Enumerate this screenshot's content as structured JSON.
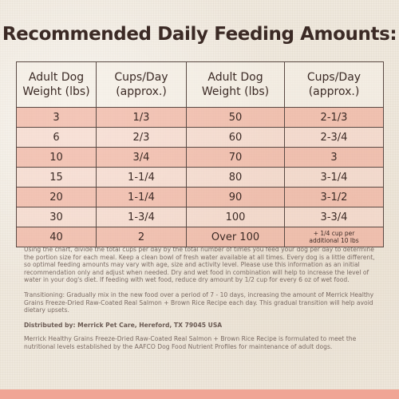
{
  "title": "Recommended Daily Feeding Amounts:",
  "table": {
    "headers": [
      "Adult Dog\nWeight (lbs)",
      "Cups/Day\n(approx.)",
      "Adult Dog\nWeight (lbs)",
      "Cups/Day\n(approx.)"
    ],
    "rows": [
      [
        "3",
        "1/3",
        "50",
        "2-1/3"
      ],
      [
        "6",
        "2/3",
        "60",
        "2-3/4"
      ],
      [
        "10",
        "3/4",
        "70",
        "3"
      ],
      [
        "15",
        "1-1/4",
        "80",
        "3-1/4"
      ],
      [
        "20",
        "1-1/4",
        "90",
        "3-1/2"
      ],
      [
        "30",
        "1-3/4",
        "100",
        "3-3/4"
      ],
      [
        "40",
        "2",
        "Over 100",
        "+ 1/4 cup per\nadditional 10 lbs"
      ]
    ]
  },
  "notes": {
    "usage": "Using the chart, divide the total cups per day by the total number of times you feed your dog per day to determine the portion size for each meal. Keep a clean bowl of fresh water available at all times. Every dog is a little different, so optimal feeding amounts may vary with age, size and activity level. Please use this information as an initial recommendation only and adjust when needed. Dry and wet food in combination will help to increase the level of water in your dog's diet. If feeding with wet food, reduce dry amount by 1/2 cup for every 6 oz of wet food.",
    "transition": "Transitioning: Gradually mix in the new food over a period of 7 - 10 days, increasing the amount of Merrick Healthy Grains Freeze-Dried Raw-Coated Real Salmon + Brown Rice Recipe each day. This gradual transition will help avoid dietary upsets.",
    "distributor": "Distributed by: Merrick Pet Care, Hereford, TX 79045 USA",
    "aafco": "Merrick Healthy Grains Freeze-Dried Raw-Coated Real Salmon + Brown Rice Recipe is formulated to meet the nutritional levels established by the AAFCO Dog Food Nutrient Profiles for maintenance of adult dogs."
  },
  "colors": {
    "text": "#3b2a25",
    "row_dark": "#f0aa96",
    "row_light": "#f8d2c4",
    "bottom_bar": "#f0a595"
  }
}
